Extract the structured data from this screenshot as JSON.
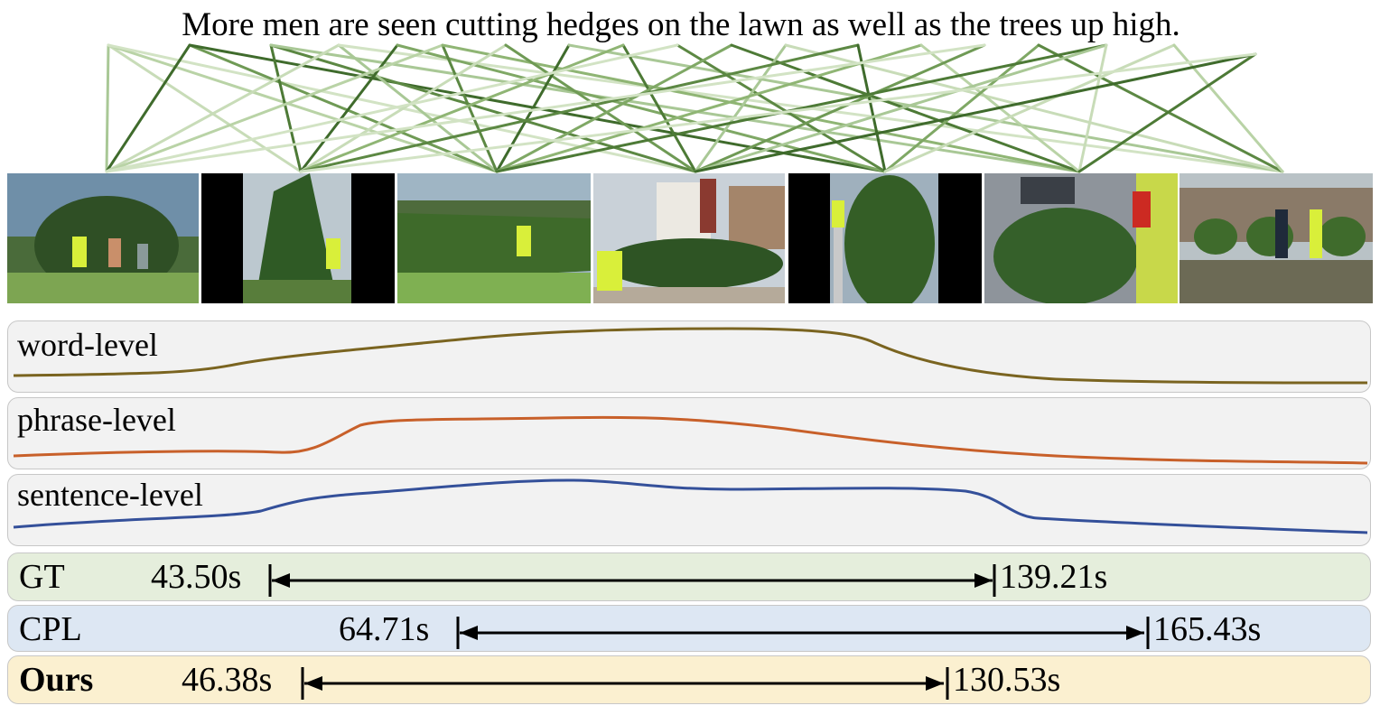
{
  "query": {
    "text": "More men are seen cutting hedges on the lawn as well as the trees up high."
  },
  "frames": [
    {
      "index": 1,
      "scene": "three men on lawn with tall hedge and tree"
    },
    {
      "index": 2,
      "scene": "man in yellow vest trimming tall conical tree, letterboxed"
    },
    {
      "index": 3,
      "scene": "man trimming long hedge row with trimmer"
    },
    {
      "index": 4,
      "scene": "man trimming hedge in front of house"
    },
    {
      "index": 5,
      "scene": "man on ladder trimming tall shrub, letterboxed"
    },
    {
      "index": 6,
      "scene": "man trimming round bush beside house"
    },
    {
      "index": 7,
      "scene": "two men trimming shrubs along fence"
    }
  ],
  "curves": [
    {
      "label": "word-level",
      "color": "#7a6420"
    },
    {
      "label": "phrase-level",
      "color": "#c8602a"
    },
    {
      "label": "sentence-level",
      "color": "#34509a"
    }
  ],
  "results": [
    {
      "method": "GT",
      "start": "43.50s",
      "end": "139.21s",
      "panel_color": "#e5eedc"
    },
    {
      "method": "CPL",
      "start": "64.71s",
      "end": "165.43s",
      "panel_color": "#dde7f3"
    },
    {
      "method": "Ours",
      "start": "46.38s",
      "end": "130.53s",
      "panel_color": "#fbf0d0"
    }
  ],
  "colors": {
    "link_dark": "#3f6b2c",
    "link_mid": "#7fa865",
    "link_light": "#c8dcb8"
  }
}
